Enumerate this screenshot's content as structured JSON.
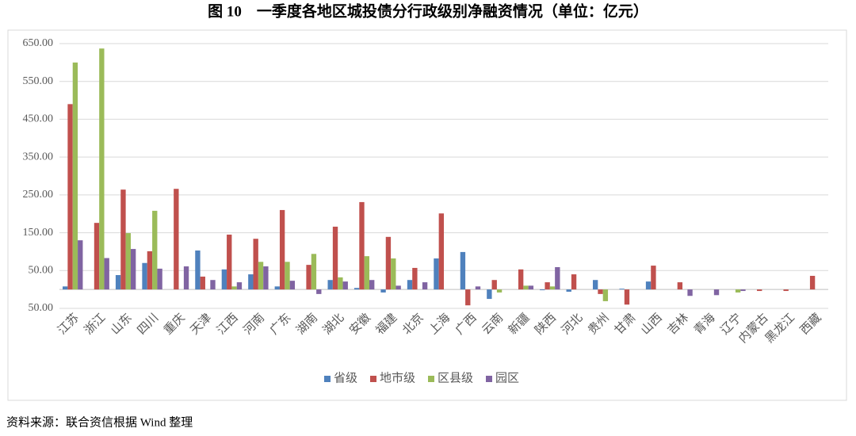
{
  "chart_data": {
    "type": "bar",
    "title": "图 10　一季度各地区城投债分行政级别净融资情况（单位：亿元）",
    "source": "资料来源：联合资信根据 Wind 整理",
    "categories": [
      "江苏",
      "浙江",
      "山东",
      "四川",
      "重庆",
      "天津",
      "江西",
      "河南",
      "广东",
      "湖南",
      "湖北",
      "安徽",
      "福建",
      "北京",
      "上海",
      "广西",
      "云南",
      "新疆",
      "陕西",
      "河北",
      "贵州",
      "甘肃",
      "山西",
      "吉林",
      "青海",
      "辽宁",
      "内蒙古",
      "黑龙江",
      "西藏"
    ],
    "series": [
      {
        "name": "省级",
        "color": "#4f81bd",
        "values": [
          8,
          0,
          38,
          70,
          0,
          103,
          53,
          40,
          8,
          0,
          25,
          4,
          -8,
          25,
          82,
          99,
          -25,
          0,
          -2,
          -6,
          25,
          2,
          21,
          0,
          0,
          0,
          0,
          0,
          0
        ]
      },
      {
        "name": "地市级",
        "color": "#c0504d",
        "values": [
          490,
          176,
          264,
          101,
          266,
          34,
          145,
          134,
          210,
          65,
          166,
          231,
          139,
          57,
          201,
          -42,
          25,
          53,
          19,
          40,
          -12,
          -40,
          63,
          19,
          0,
          0,
          -4,
          -4,
          36
        ]
      },
      {
        "name": "区县级",
        "color": "#9bbb59",
        "values": [
          600,
          637,
          149,
          208,
          0,
          0,
          8,
          73,
          73,
          94,
          32,
          88,
          82,
          0,
          0,
          0,
          -8,
          10,
          8,
          0,
          -31,
          0,
          0,
          0,
          0,
          -8,
          0,
          0,
          0
        ]
      },
      {
        "name": "园区",
        "color": "#8064a2",
        "values": [
          130,
          83,
          107,
          55,
          61,
          25,
          19,
          61,
          23,
          -12,
          21,
          25,
          10,
          19,
          0,
          8,
          0,
          10,
          59,
          0,
          0,
          0,
          0,
          -17,
          -15,
          -4,
          0,
          0,
          0
        ]
      }
    ],
    "ylim": [
      -50,
      650
    ],
    "yticks": [
      {
        "value": -50,
        "label": "50.00"
      },
      {
        "value": 50,
        "label": "50.00"
      },
      {
        "value": 150,
        "label": "150.00"
      },
      {
        "value": 250,
        "label": "250.00"
      },
      {
        "value": 350,
        "label": "350.00"
      },
      {
        "value": 450,
        "label": "450.00"
      },
      {
        "value": 550,
        "label": "550.00"
      },
      {
        "value": 650,
        "label": "650.00"
      }
    ],
    "negative_tick_color": "#ff0000",
    "grid": true
  }
}
